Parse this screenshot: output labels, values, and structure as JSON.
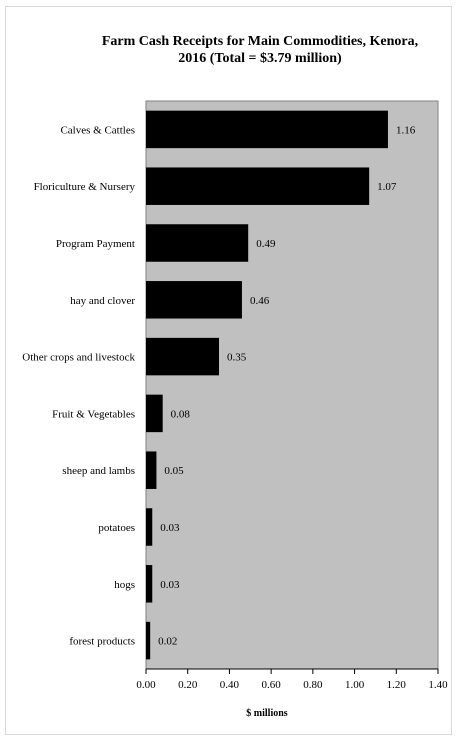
{
  "chart_data": {
    "type": "bar",
    "orientation": "horizontal",
    "title": "Farm Cash Receipts for Main Commodities, Kenora,\n2016 (Total = $3.79 million)",
    "xlabel": "$ millions",
    "ylabel": "",
    "xlim": [
      0,
      1.4
    ],
    "xticks": [
      "0.00",
      "0.20",
      "0.40",
      "0.60",
      "0.80",
      "1.00",
      "1.20",
      "1.40"
    ],
    "grid": false,
    "legend": "none",
    "plot_background": "#c0c0c0",
    "bar_color": "#000000",
    "categories": [
      "Calves & Cattles",
      "Floriculture & Nursery",
      "Program Payment",
      "hay and clover",
      "Other crops and livestock",
      "Fruit & Vegetables",
      "sheep and lambs",
      "potatoes",
      "hogs",
      "forest products"
    ],
    "values": [
      1.16,
      1.07,
      0.49,
      0.46,
      0.35,
      0.08,
      0.05,
      0.03,
      0.03,
      0.02
    ],
    "value_labels": [
      "1.16",
      "1.07",
      "0.49",
      "0.46",
      "0.35",
      "0.08",
      "0.05",
      "0.03",
      "0.03",
      "0.02"
    ]
  }
}
